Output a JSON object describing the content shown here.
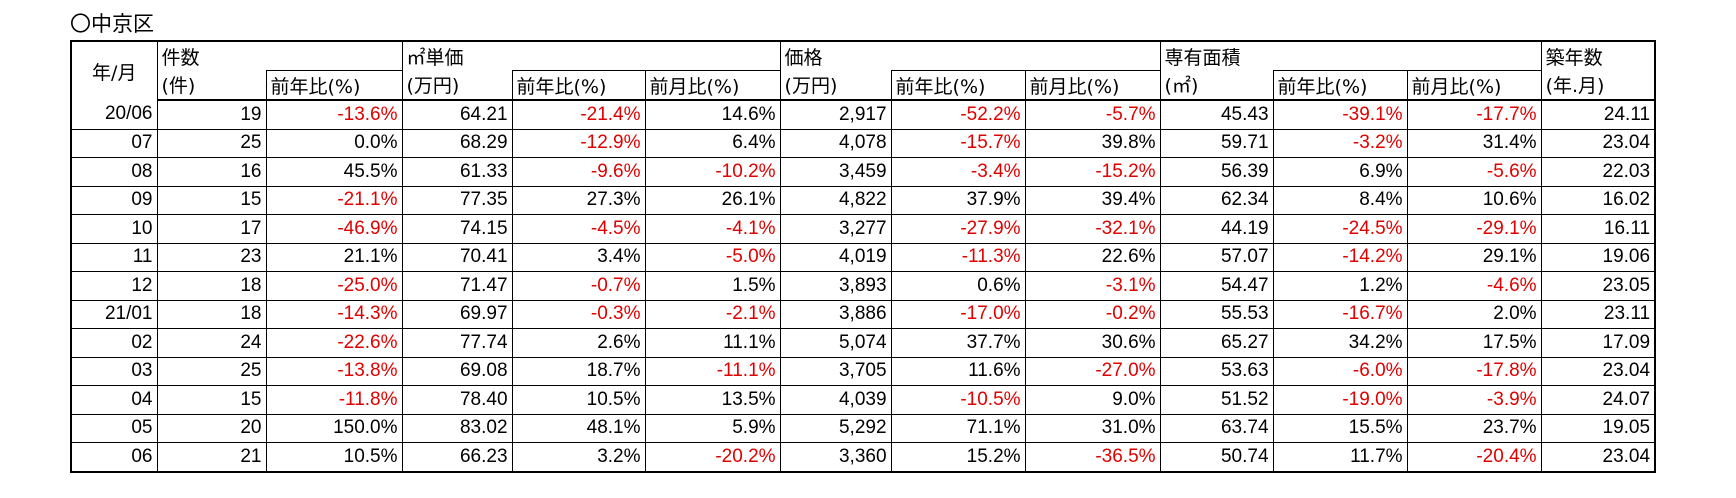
{
  "title": "〇中京区",
  "negative_color": "#e00000",
  "header": {
    "row1": [
      "年/月",
      "件数",
      "㎡単価",
      "価格",
      "専有面積",
      "築年数"
    ],
    "row2": [
      "(件)",
      "前年比(%)",
      "(万円)",
      "前年比(%)",
      "前月比(%)",
      "(万円)",
      "前年比(%)",
      "前月比(%)",
      "(㎡)",
      "前年比(%)",
      "前月比(%)",
      "(年.月)"
    ]
  },
  "table": {
    "rows": [
      [
        "20/06",
        "19",
        "-13.6%",
        "64.21",
        "-21.4%",
        "14.6%",
        "2,917",
        "-52.2%",
        "-5.7%",
        "45.43",
        "-39.1%",
        "-17.7%",
        "24.11"
      ],
      [
        "07",
        "25",
        "0.0%",
        "68.29",
        "-12.9%",
        "6.4%",
        "4,078",
        "-15.7%",
        "39.8%",
        "59.71",
        "-3.2%",
        "31.4%",
        "23.04"
      ],
      [
        "08",
        "16",
        "45.5%",
        "61.33",
        "-9.6%",
        "-10.2%",
        "3,459",
        "-3.4%",
        "-15.2%",
        "56.39",
        "6.9%",
        "-5.6%",
        "22.03"
      ],
      [
        "09",
        "15",
        "-21.1%",
        "77.35",
        "27.3%",
        "26.1%",
        "4,822",
        "37.9%",
        "39.4%",
        "62.34",
        "8.4%",
        "10.6%",
        "16.02"
      ],
      [
        "10",
        "17",
        "-46.9%",
        "74.15",
        "-4.5%",
        "-4.1%",
        "3,277",
        "-27.9%",
        "-32.1%",
        "44.19",
        "-24.5%",
        "-29.1%",
        "16.11"
      ],
      [
        "11",
        "23",
        "21.1%",
        "70.41",
        "3.4%",
        "-5.0%",
        "4,019",
        "-11.3%",
        "22.6%",
        "57.07",
        "-14.2%",
        "29.1%",
        "19.06"
      ],
      [
        "12",
        "18",
        "-25.0%",
        "71.47",
        "-0.7%",
        "1.5%",
        "3,893",
        "0.6%",
        "-3.1%",
        "54.47",
        "1.2%",
        "-4.6%",
        "23.05"
      ],
      [
        "21/01",
        "18",
        "-14.3%",
        "69.97",
        "-0.3%",
        "-2.1%",
        "3,886",
        "-17.0%",
        "-0.2%",
        "55.53",
        "-16.7%",
        "2.0%",
        "23.11"
      ],
      [
        "02",
        "24",
        "-22.6%",
        "77.74",
        "2.6%",
        "11.1%",
        "5,074",
        "37.7%",
        "30.6%",
        "65.27",
        "34.2%",
        "17.5%",
        "17.09"
      ],
      [
        "03",
        "25",
        "-13.8%",
        "69.08",
        "18.7%",
        "-11.1%",
        "3,705",
        "11.6%",
        "-27.0%",
        "53.63",
        "-6.0%",
        "-17.8%",
        "23.04"
      ],
      [
        "04",
        "15",
        "-11.8%",
        "78.40",
        "10.5%",
        "13.5%",
        "4,039",
        "-10.5%",
        "9.0%",
        "51.52",
        "-19.0%",
        "-3.9%",
        "24.07"
      ],
      [
        "05",
        "20",
        "150.0%",
        "83.02",
        "48.1%",
        "5.9%",
        "5,292",
        "71.1%",
        "31.0%",
        "63.74",
        "15.5%",
        "23.7%",
        "19.05"
      ],
      [
        "06",
        "21",
        "10.5%",
        "66.23",
        "3.2%",
        "-20.2%",
        "3,360",
        "15.2%",
        "-36.5%",
        "50.74",
        "11.7%",
        "-20.4%",
        "23.04"
      ]
    ]
  }
}
